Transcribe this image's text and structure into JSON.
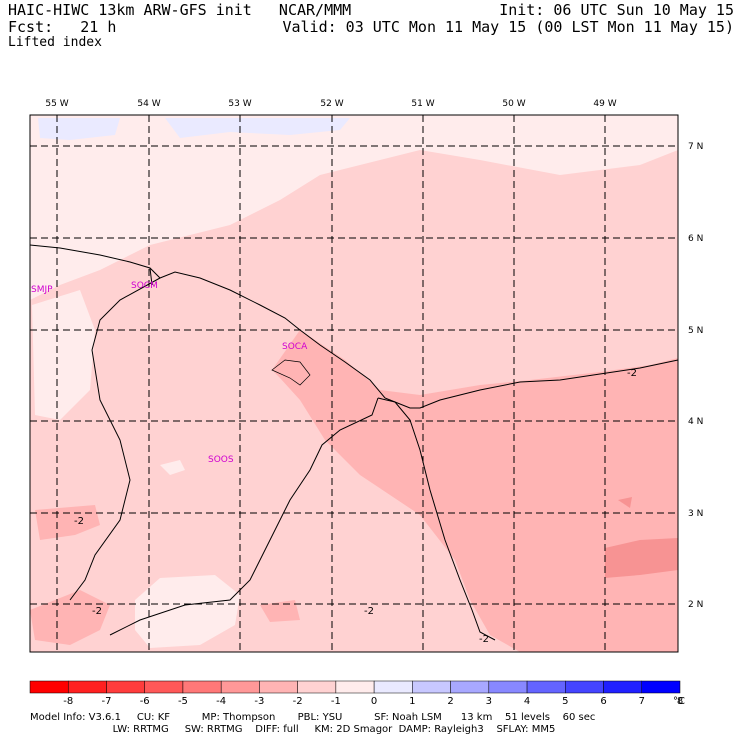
{
  "header": {
    "left_line1": "HAIC-HIWC 13km ARW-GFS init   NCAR/MMM",
    "left_line2": "Fcst:   21 h",
    "right_line1": "Init: 06 UTC Sun 10 May 15",
    "right_line2": "Valid: 03 UTC Mon 11 May 15 (00 LST Mon 11 May 15)",
    "variable": "Lifted index"
  },
  "map": {
    "longitude_labels": [
      "55 W",
      "54 W",
      "53 W",
      "52 W",
      "51 W",
      "50 W",
      "49 W"
    ],
    "latitude_labels": [
      "7 N",
      "6 N",
      "5 N",
      "4 N",
      "3 N",
      "2 N"
    ],
    "stations": [
      "SMJP",
      "SOCM",
      "SOCA",
      "SOOS"
    ],
    "contour_labels": [
      "-2",
      "-2",
      "-2",
      "-2",
      "-2"
    ],
    "colors": {
      "lightest_pink": "#ffecec",
      "light_pink": "#ffd2d2",
      "medium_pink": "#ffb4b4",
      "darker_pink": "#f79393",
      "light_blue": "#eaeaff"
    }
  },
  "colorbar": {
    "ticks": [
      "-8",
      "-7",
      "-6",
      "-5",
      "-4",
      "-3",
      "-2",
      "-1",
      "0",
      "1",
      "2",
      "3",
      "4",
      "5",
      "6",
      "7",
      "8"
    ],
    "unit": "°C",
    "colors": [
      "#ff0000",
      "#ff2020",
      "#ff3c3c",
      "#ff5858",
      "#ff7878",
      "#ff9898",
      "#ffb4b4",
      "#ffd2d2",
      "#ffecec",
      "#eaeaff",
      "#c8c8ff",
      "#a8a8ff",
      "#8888ff",
      "#6464ff",
      "#4444ff",
      "#2020ff",
      "#0000ff"
    ]
  },
  "footer": {
    "line1": "Model Info: V3.6.1     CU: KF          MP: Thompson       PBL: YSU          SF: Noah LSM      13 km    51 levels    60 sec",
    "line2": "                          LW: RRTMG     SW: RRTMG    DIFF: full     KM: 2D Smagor  DAMP: Rayleigh3    SFLAY: MM5"
  }
}
